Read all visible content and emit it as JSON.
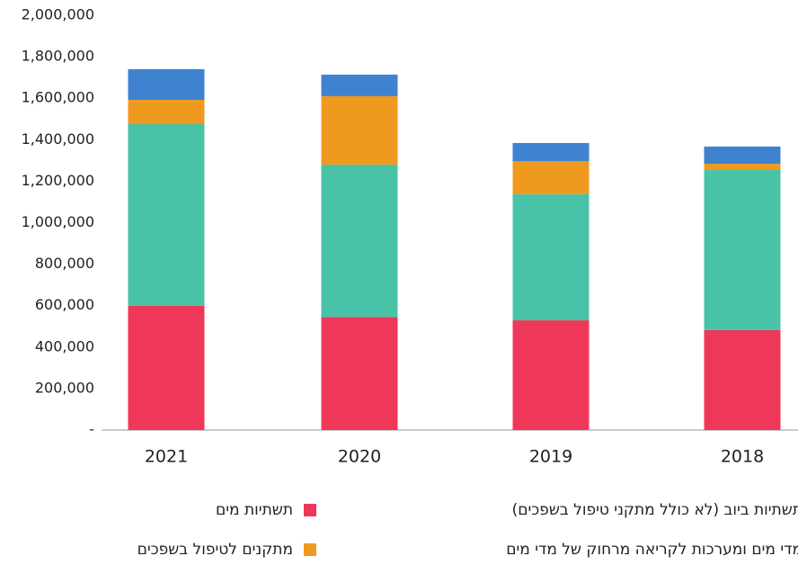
{
  "chart_data": {
    "type": "stacked_bar",
    "categories": [
      "2021",
      "2020",
      "2019",
      "2018"
    ],
    "series": [
      {
        "name": "תשתיות מים",
        "color": "#ef3759",
        "values": [
          600000,
          545000,
          529000,
          482000
        ]
      },
      {
        "name": "תשתיות ביוב (לא כולל מתקני טיפול בשפכים)",
        "color": "#48c3a8",
        "values": [
          875000,
          735000,
          608000,
          772000
        ]
      },
      {
        "name": "מתקנים לטיפול בשפכים",
        "color": "#ef9a1e",
        "values": [
          117000,
          330000,
          160000,
          30000
        ]
      },
      {
        "name": "מדי מים ומערכות לקריאה מרחוק של מדי מים",
        "color": "#3e82d0",
        "values": [
          148000,
          104000,
          87000,
          83000
        ]
      }
    ],
    "ylim": [
      0,
      2000000
    ],
    "yticks": [
      {
        "value": 0,
        "label": "-"
      },
      {
        "value": 200000,
        "label": "200,000"
      },
      {
        "value": 400000,
        "label": "400,000"
      },
      {
        "value": 600000,
        "label": "600,000"
      },
      {
        "value": 800000,
        "label": "800,000"
      },
      {
        "value": 1000000,
        "label": "1,000,000"
      },
      {
        "value": 1200000,
        "label": "1,200,000"
      },
      {
        "value": 1400000,
        "label": "1,400,000"
      },
      {
        "value": 1600000,
        "label": "1,600,000"
      },
      {
        "value": 1800000,
        "label": "1,800,000"
      },
      {
        "value": 2000000,
        "label": "2,000,000"
      }
    ]
  }
}
